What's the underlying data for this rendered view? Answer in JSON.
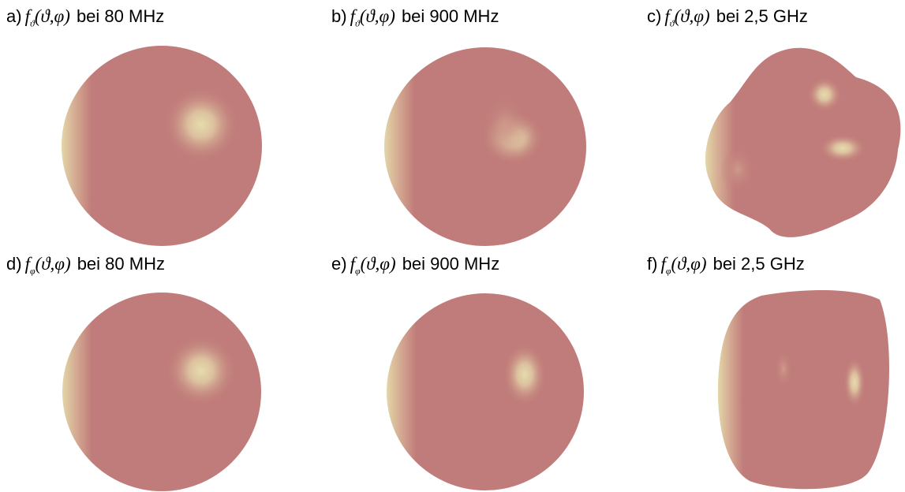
{
  "panels": [
    {
      "letter": "a)",
      "func": "f",
      "sub": "ϑ",
      "args": "(ϑ,φ)",
      "freq": "bei 80 MHz"
    },
    {
      "letter": "b)",
      "func": "f",
      "sub": "ϑ",
      "args": "(ϑ,φ)",
      "freq": "bei 900 MHz"
    },
    {
      "letter": "c)",
      "func": "f",
      "sub": "ϑ",
      "args": "(ϑ,φ)",
      "freq": "bei 2,5 GHz"
    },
    {
      "letter": "d)",
      "func": "f",
      "sub": "φ",
      "args": "(ϑ,φ)",
      "freq": "bei 80 MHz"
    },
    {
      "letter": "e)",
      "func": "f",
      "sub": "φ",
      "args": "(ϑ,φ)",
      "freq": "bei 900 MHz"
    },
    {
      "letter": "f)",
      "func": "f",
      "sub": "φ",
      "args": "(ϑ,φ)",
      "freq": "bei 2,5 GHz"
    }
  ]
}
